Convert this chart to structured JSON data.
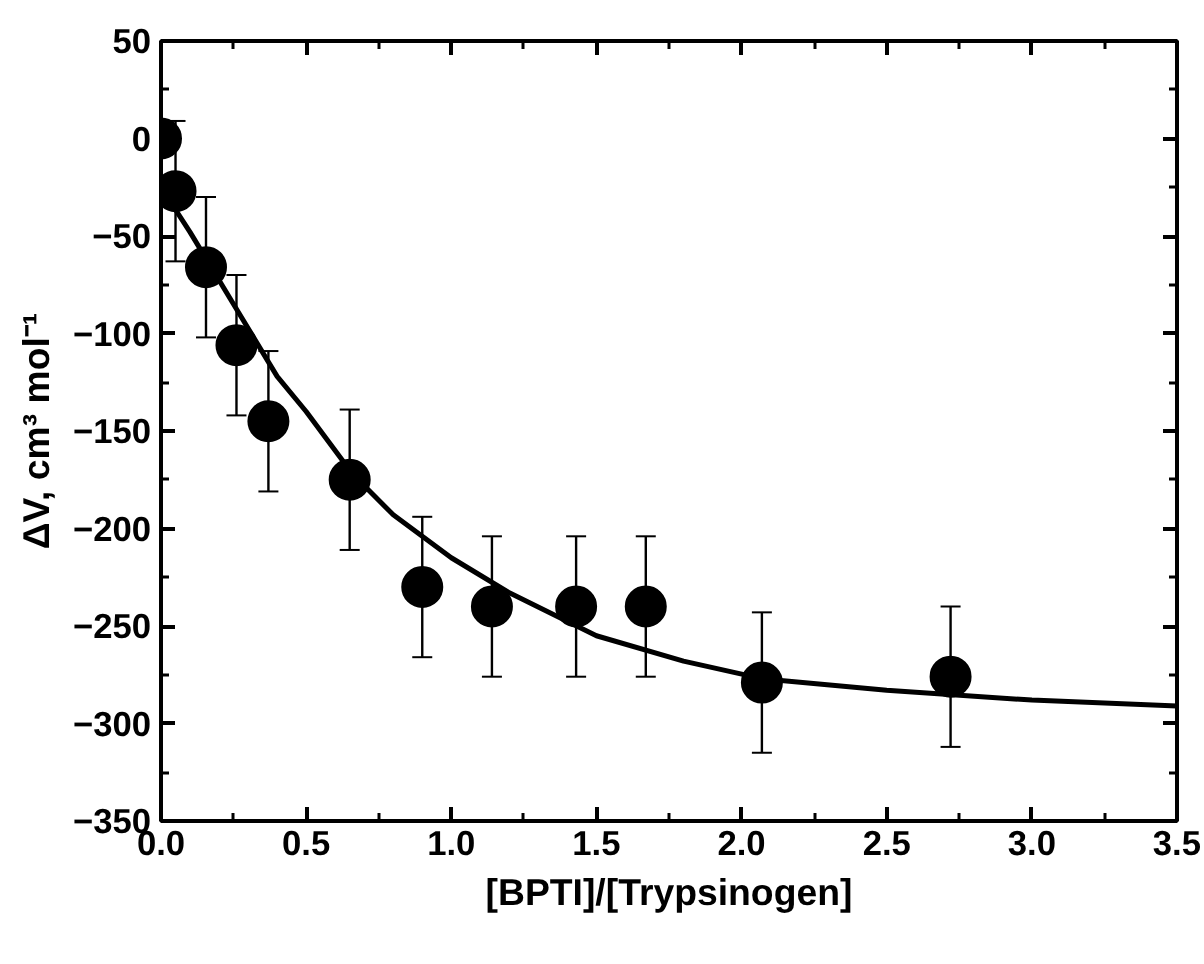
{
  "chart_data": {
    "type": "scatter",
    "xlabel": "[BPTI]/[Trypsinogen]",
    "ylabel": "ΔV, cm³ mol⁻¹",
    "xlim": [
      0,
      3.5
    ],
    "xticks": [
      {
        "value": 0,
        "label": "0.0"
      },
      0.5,
      {
        "value": 1,
        "label": "1.0"
      },
      1.5,
      {
        "value": 2,
        "label": "2.0"
      },
      2.5,
      {
        "value": 3,
        "label": "3.0"
      },
      3.5
    ],
    "ylim": [
      -350,
      50
    ],
    "yticks": [
      -350,
      -300,
      -250,
      -200,
      -150,
      -100,
      -50,
      0,
      50
    ],
    "grid": false,
    "series": [
      {
        "color": "#000000",
        "marker": "circle",
        "x": [
          0,
          0.05,
          0.155,
          0.26,
          0.37,
          0.65,
          0.9,
          1.14,
          1.43,
          1.67,
          2.07,
          2.72
        ],
        "values": [
          0,
          -27,
          -66,
          -106,
          -145,
          -175,
          -230,
          -240,
          -240,
          -240,
          -279,
          -276
        ],
        "errors": [
          null,
          36,
          36,
          36,
          36,
          36,
          36,
          36,
          36,
          36,
          36,
          36
        ]
      },
      {
        "type": "line",
        "color": "#000000",
        "line_style": "solid",
        "x": [
          0,
          0.1,
          0.25,
          0.4,
          0.5,
          0.66,
          0.8,
          1.0,
          1.2,
          1.5,
          1.8,
          2.07,
          2.5,
          3.0,
          3.5
        ],
        "values": [
          -25,
          -48,
          -85,
          -122,
          -140,
          -172,
          -193,
          -215,
          -233,
          -255,
          -268,
          -277,
          -283,
          -288,
          -291
        ]
      }
    ]
  }
}
